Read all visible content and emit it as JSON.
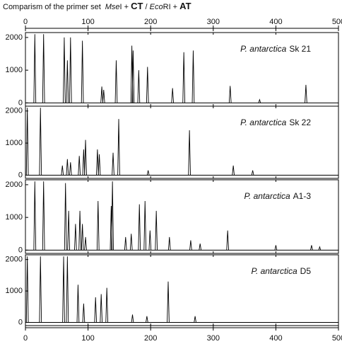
{
  "header": {
    "title_parts": [
      "Comparism of the primer set",
      "Mse",
      "I + ",
      "CT",
      " / ",
      "Eco",
      "RI + ",
      "AT"
    ]
  },
  "x_axis": {
    "xlim": [
      0,
      500
    ],
    "xticks": [
      0,
      100,
      200,
      300,
      400,
      500
    ]
  },
  "chart_data": [
    {
      "type": "stem",
      "species": "P. antarctica",
      "sample": "Sk 21",
      "ylim": [
        -100,
        2150
      ],
      "yticks": [
        0,
        1000,
        2000
      ],
      "x": [
        15,
        29,
        62,
        67,
        72,
        91,
        122,
        125,
        145,
        170,
        172,
        181,
        195,
        235,
        253,
        268,
        327,
        374,
        448
      ],
      "values": [
        2100,
        2100,
        2000,
        1300,
        2000,
        1900,
        500,
        400,
        1300,
        1750,
        1600,
        1000,
        1100,
        450,
        1550,
        1600,
        520,
        100,
        550
      ]
    },
    {
      "type": "stem",
      "species": "P. antarctica",
      "sample": "Sk 22",
      "ylim": [
        -100,
        2150
      ],
      "yticks": [
        0,
        1000,
        2000
      ],
      "x": [
        3,
        24,
        59,
        67,
        72,
        86,
        93,
        96,
        115,
        118,
        140,
        149,
        196,
        262,
        332,
        363
      ],
      "values": [
        2100,
        2100,
        300,
        500,
        400,
        600,
        800,
        1100,
        800,
        650,
        700,
        1750,
        150,
        1400,
        300,
        150
      ]
    },
    {
      "type": "stem",
      "species": "P. antarctica",
      "sample": "A1-3",
      "ylim": [
        -100,
        2150
      ],
      "yticks": [
        0,
        1000,
        2000
      ],
      "x": [
        15,
        29,
        64,
        69,
        80,
        87,
        91,
        96,
        116,
        137,
        139,
        160,
        169,
        182,
        191,
        199,
        209,
        230,
        264,
        279,
        323,
        400,
        457,
        470
      ],
      "values": [
        2100,
        2100,
        2050,
        1200,
        800,
        1200,
        800,
        400,
        1500,
        1350,
        2100,
        400,
        500,
        1400,
        1500,
        600,
        1200,
        400,
        300,
        200,
        600,
        150,
        150,
        100
      ]
    },
    {
      "type": "stem",
      "species": "P. antarctica",
      "sample": "D5",
      "ylim": [
        -100,
        2150
      ],
      "yticks": [
        0,
        1000,
        2000
      ],
      "x": [
        3,
        24,
        61,
        67,
        84,
        93,
        112,
        121,
        130,
        171,
        194,
        228,
        271
      ],
      "values": [
        2100,
        2100,
        2100,
        2100,
        1200,
        600,
        800,
        900,
        1100,
        250,
        200,
        1300,
        200
      ]
    }
  ]
}
